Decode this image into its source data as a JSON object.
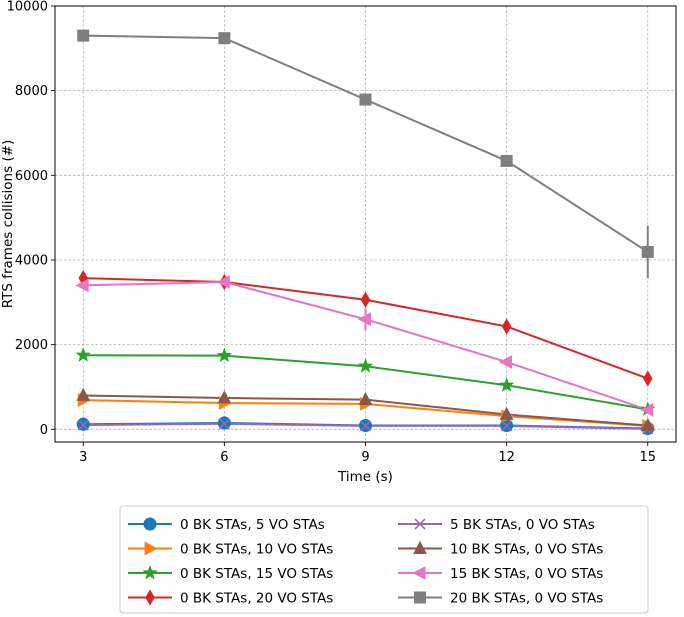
{
  "chart_data": {
    "type": "line",
    "title": "",
    "xlabel": "Time (s)",
    "ylabel": "RTS frames collisions (#)",
    "x": [
      3,
      6,
      9,
      12,
      15
    ],
    "xlim": [
      2.4,
      15.6
    ],
    "ylim": [
      -300,
      10000
    ],
    "xticks": [
      3,
      6,
      9,
      12,
      15
    ],
    "yticks": [
      0,
      2000,
      4000,
      6000,
      8000,
      10000
    ],
    "grid": true,
    "legend_position": "below",
    "legend_columns": 2,
    "series": [
      {
        "name": "0 BK STAs, 5 VO STAs",
        "color": "#1f77b4",
        "marker": "circle",
        "values": [
          120,
          150,
          90,
          90,
          20
        ]
      },
      {
        "name": "0 BK STAs, 10 VO STAs",
        "color": "#ff7f0e",
        "marker": "triangle-right",
        "values": [
          690,
          620,
          600,
          310,
          80
        ]
      },
      {
        "name": "0 BK STAs, 15 VO STAs",
        "color": "#2ca02c",
        "marker": "star",
        "values": [
          1750,
          1740,
          1490,
          1040,
          470
        ]
      },
      {
        "name": "0 BK STAs, 20 VO STAs",
        "color": "#d62728",
        "marker": "thin-diamond",
        "values": [
          3570,
          3480,
          3060,
          2430,
          1200
        ]
      },
      {
        "name": "5 BK STAs, 0 VO STAs",
        "color": "#9467bd",
        "marker": "x",
        "values": [
          100,
          130,
          80,
          80,
          10
        ]
      },
      {
        "name": "10 BK STAs, 0 VO STAs",
        "color": "#8c564b",
        "marker": "triangle-up",
        "values": [
          800,
          740,
          700,
          350,
          90
        ]
      },
      {
        "name": "15 BK STAs, 0 VO STAs",
        "color": "#e377c2",
        "marker": "triangle-left",
        "values": [
          3400,
          3480,
          2600,
          1590,
          460
        ],
        "errors": [
          0,
          60,
          260,
          80,
          40
        ]
      },
      {
        "name": "20 BK STAs, 0 VO STAs",
        "color": "#7f7f7f",
        "marker": "square",
        "values": [
          9300,
          9240,
          7790,
          6340,
          4190
        ],
        "errors": [
          0,
          0,
          0,
          0,
          620
        ]
      }
    ]
  }
}
